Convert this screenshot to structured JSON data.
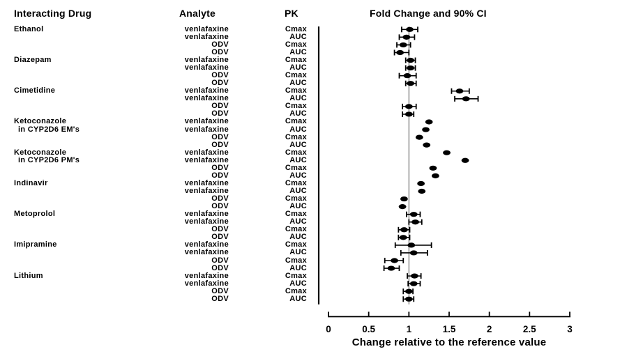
{
  "figure": {
    "columns": {
      "interacting_drug": "Interacting Drug",
      "analyte": "Analyte",
      "pk": "PK",
      "plot": "Fold Change and 90% CI"
    },
    "xlabel": "Change relative to the reference value"
  },
  "chart_data": {
    "type": "scatter",
    "subtype": "forest-plot",
    "title": "Fold Change and 90% CI",
    "xlabel": "Change relative to the reference value",
    "xlim": [
      0,
      3
    ],
    "x_ticks": [
      0,
      0.5,
      1,
      1.5,
      2,
      2.5,
      3
    ],
    "x_tick_labels": [
      "0",
      "0.5",
      "1",
      "1.5",
      "2",
      "2.5",
      "3"
    ],
    "reference_line": 1,
    "ci_level": "90%",
    "marker_color": "#000000",
    "grid": false,
    "groups": [
      {
        "drug": [
          "Ethanol"
        ],
        "rows": [
          {
            "analyte": "venlafaxine",
            "pk": "Cmax",
            "est": 1.01,
            "lo": 0.91,
            "hi": 1.11
          },
          {
            "analyte": "venlafaxine",
            "pk": "AUC",
            "est": 0.97,
            "lo": 0.88,
            "hi": 1.07
          },
          {
            "analyte": "ODV",
            "pk": "Cmax",
            "est": 0.93,
            "lo": 0.85,
            "hi": 1.02
          },
          {
            "analyte": "ODV",
            "pk": "AUC",
            "est": 0.89,
            "lo": 0.82,
            "hi": 1.0
          }
        ]
      },
      {
        "drug": [
          "Diazepam"
        ],
        "rows": [
          {
            "analyte": "venlafaxine",
            "pk": "Cmax",
            "est": 1.02,
            "lo": 0.96,
            "hi": 1.08
          },
          {
            "analyte": "venlafaxine",
            "pk": "AUC",
            "est": 1.02,
            "lo": 0.96,
            "hi": 1.08
          },
          {
            "analyte": "ODV",
            "pk": "Cmax",
            "est": 0.98,
            "lo": 0.88,
            "hi": 1.09
          },
          {
            "analyte": "ODV",
            "pk": "AUC",
            "est": 1.02,
            "lo": 0.96,
            "hi": 1.09
          }
        ]
      },
      {
        "drug": [
          "Cimetidine"
        ],
        "rows": [
          {
            "analyte": "venlafaxine",
            "pk": "Cmax",
            "est": 1.63,
            "lo": 1.53,
            "hi": 1.75
          },
          {
            "analyte": "venlafaxine",
            "pk": "AUC",
            "est": 1.71,
            "lo": 1.57,
            "hi": 1.86
          },
          {
            "analyte": "ODV",
            "pk": "Cmax",
            "est": 1.0,
            "lo": 0.92,
            "hi": 1.09
          },
          {
            "analyte": "ODV",
            "pk": "AUC",
            "est": 1.0,
            "lo": 0.92,
            "hi": 1.06
          }
        ]
      },
      {
        "drug": [
          "Ketoconazole",
          "in CYP2D6 EM's"
        ],
        "rows": [
          {
            "analyte": "venlafaxine",
            "pk": "Cmax",
            "est": 1.25,
            "lo": null,
            "hi": null
          },
          {
            "analyte": "venlafaxine",
            "pk": "AUC",
            "est": 1.21,
            "lo": null,
            "hi": null
          },
          {
            "analyte": "ODV",
            "pk": "Cmax",
            "est": 1.13,
            "lo": null,
            "hi": null
          },
          {
            "analyte": "ODV",
            "pk": "AUC",
            "est": 1.22,
            "lo": null,
            "hi": null
          }
        ]
      },
      {
        "drug": [
          "Ketoconazole",
          "in CYP2D6 PM's"
        ],
        "rows": [
          {
            "analyte": "venlafaxine",
            "pk": "Cmax",
            "est": 1.47,
            "lo": null,
            "hi": null
          },
          {
            "analyte": "venlafaxine",
            "pk": "AUC",
            "est": 1.7,
            "lo": null,
            "hi": null
          },
          {
            "analyte": "ODV",
            "pk": "Cmax",
            "est": 1.3,
            "lo": null,
            "hi": null
          },
          {
            "analyte": "ODV",
            "pk": "AUC",
            "est": 1.33,
            "lo": null,
            "hi": null
          }
        ]
      },
      {
        "drug": [
          "Indinavir"
        ],
        "rows": [
          {
            "analyte": "venlafaxine",
            "pk": "Cmax",
            "est": 1.15,
            "lo": null,
            "hi": null
          },
          {
            "analyte": "venlafaxine",
            "pk": "AUC",
            "est": 1.16,
            "lo": null,
            "hi": null
          },
          {
            "analyte": "ODV",
            "pk": "Cmax",
            "est": 0.94,
            "lo": null,
            "hi": null
          },
          {
            "analyte": "ODV",
            "pk": "AUC",
            "est": 0.92,
            "lo": null,
            "hi": null
          }
        ]
      },
      {
        "drug": [
          "Metoprolol"
        ],
        "rows": [
          {
            "analyte": "venlafaxine",
            "pk": "Cmax",
            "est": 1.06,
            "lo": 0.97,
            "hi": 1.14
          },
          {
            "analyte": "venlafaxine",
            "pk": "AUC",
            "est": 1.08,
            "lo": 1.0,
            "hi": 1.16
          },
          {
            "analyte": "ODV",
            "pk": "Cmax",
            "est": 0.94,
            "lo": 0.87,
            "hi": 1.01
          },
          {
            "analyte": "ODV",
            "pk": "AUC",
            "est": 0.93,
            "lo": 0.87,
            "hi": 1.01
          }
        ]
      },
      {
        "drug": [
          "Imipramine"
        ],
        "rows": [
          {
            "analyte": "venlafaxine",
            "pk": "Cmax",
            "est": 1.03,
            "lo": 0.83,
            "hi": 1.28
          },
          {
            "analyte": "venlafaxine",
            "pk": "AUC",
            "est": 1.06,
            "lo": 0.9,
            "hi": 1.23
          },
          {
            "analyte": "ODV",
            "pk": "Cmax",
            "est": 0.82,
            "lo": 0.7,
            "hi": 0.93
          },
          {
            "analyte": "ODV",
            "pk": "AUC",
            "est": 0.78,
            "lo": 0.69,
            "hi": 0.88
          }
        ]
      },
      {
        "drug": [
          "Lithium"
        ],
        "rows": [
          {
            "analyte": "venlafaxine",
            "pk": "Cmax",
            "est": 1.07,
            "lo": 0.98,
            "hi": 1.15
          },
          {
            "analyte": "venlafaxine",
            "pk": "AUC",
            "est": 1.06,
            "lo": 0.99,
            "hi": 1.14
          },
          {
            "analyte": "ODV",
            "pk": "Cmax",
            "est": 1.0,
            "lo": 0.93,
            "hi": 1.05
          },
          {
            "analyte": "ODV",
            "pk": "AUC",
            "est": 1.0,
            "lo": 0.93,
            "hi": 1.06
          }
        ]
      }
    ]
  }
}
